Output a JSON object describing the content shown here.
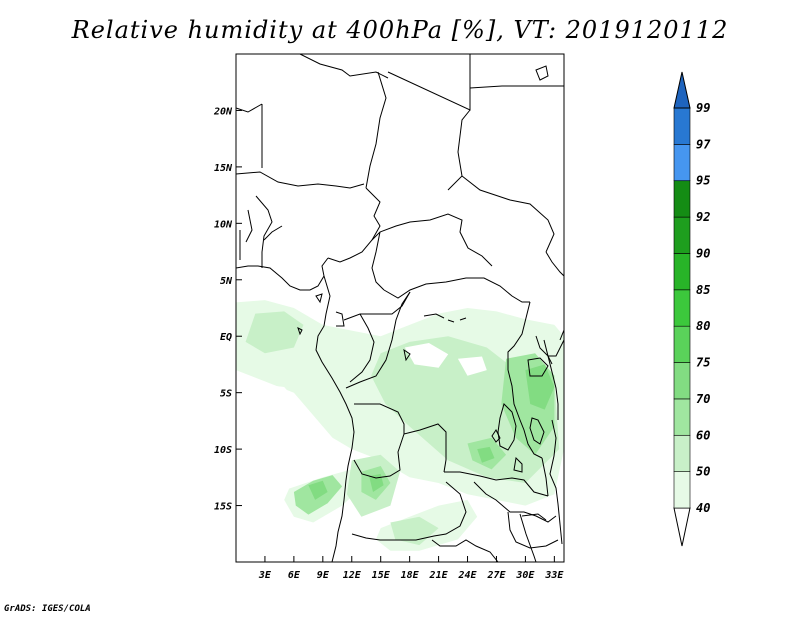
{
  "title": "Relative humidity at 400hPa [%], VT: 2019120112",
  "credit": "GrADS: IGES/COLA",
  "map": {
    "lon_range": [
      0,
      34
    ],
    "lat_range": [
      -20,
      25
    ],
    "lat_ticks": [
      {
        "value": 20,
        "label": "20N"
      },
      {
        "value": 15,
        "label": "15N"
      },
      {
        "value": 10,
        "label": "10N"
      },
      {
        "value": 5,
        "label": "5N"
      },
      {
        "value": 0,
        "label": "EQ"
      },
      {
        "value": -5,
        "label": "5S"
      },
      {
        "value": -10,
        "label": "10S"
      },
      {
        "value": -15,
        "label": "15S"
      }
    ],
    "lon_ticks": [
      {
        "value": 3,
        "label": "3E"
      },
      {
        "value": 6,
        "label": "6E"
      },
      {
        "value": 9,
        "label": "9E"
      },
      {
        "value": 12,
        "label": "12E"
      },
      {
        "value": 15,
        "label": "15E"
      },
      {
        "value": 18,
        "label": "18E"
      },
      {
        "value": 21,
        "label": "21E"
      },
      {
        "value": 24,
        "label": "24E"
      },
      {
        "value": 27,
        "label": "27E"
      },
      {
        "value": 30,
        "label": "30E"
      },
      {
        "value": 33,
        "label": "33E"
      }
    ]
  },
  "colorbar": {
    "levels": [
      "40",
      "50",
      "60",
      "70",
      "75",
      "80",
      "85",
      "90",
      "92",
      "95",
      "97",
      "99"
    ],
    "colors": [
      "#ffffff",
      "#e6fae6",
      "#c8f0c8",
      "#a0e6a0",
      "#82dc82",
      "#5ad25a",
      "#3cc83c",
      "#28b428",
      "#1e9e1e",
      "#148c14",
      "#4696f0",
      "#2878d2",
      "#1e64be"
    ]
  },
  "humidity_regions": [
    {
      "level": 1,
      "coords": [
        [
          0,
          3
        ],
        [
          3,
          3.2
        ],
        [
          6,
          2.5
        ],
        [
          9,
          1
        ],
        [
          12,
          0.5
        ],
        [
          15,
          0
        ],
        [
          18,
          1
        ],
        [
          21,
          2
        ],
        [
          24,
          2.5
        ],
        [
          27,
          2.2
        ],
        [
          30,
          1.5
        ],
        [
          33,
          1
        ],
        [
          34,
          0
        ],
        [
          34,
          -10
        ],
        [
          33,
          -14
        ],
        [
          30,
          -15
        ],
        [
          27,
          -14.5
        ],
        [
          24,
          -14
        ],
        [
          21,
          -13
        ],
        [
          18,
          -12.5
        ],
        [
          15,
          -11
        ],
        [
          12,
          -10
        ],
        [
          10,
          -9
        ],
        [
          8,
          -7
        ],
        [
          6,
          -5
        ],
        [
          3,
          -4
        ],
        [
          0,
          -3
        ]
      ]
    },
    {
      "level": 1,
      "coords": [
        [
          5.5,
          -13.5
        ],
        [
          9,
          -12.5
        ],
        [
          12,
          -11.8
        ],
        [
          13.5,
          -13
        ],
        [
          11,
          -15
        ],
        [
          8,
          -16.5
        ],
        [
          6,
          -16
        ],
        [
          5,
          -14.5
        ]
      ]
    },
    {
      "level": 1,
      "coords": [
        [
          15,
          -17
        ],
        [
          18,
          -16
        ],
        [
          21,
          -15
        ],
        [
          24,
          -14.5
        ],
        [
          25,
          -16
        ],
        [
          23,
          -18
        ],
        [
          19,
          -19
        ],
        [
          16,
          -19
        ],
        [
          14.5,
          -18
        ]
      ]
    },
    {
      "level": 2,
      "coords": [
        [
          2,
          2
        ],
        [
          5,
          2.2
        ],
        [
          7,
          1
        ],
        [
          6,
          -1
        ],
        [
          3,
          -1.5
        ],
        [
          1,
          -0.5
        ]
      ]
    },
    {
      "level": 2,
      "coords": [
        [
          15,
          -1.5
        ],
        [
          18,
          -0.5
        ],
        [
          22,
          0
        ],
        [
          26,
          -1
        ],
        [
          29,
          -3
        ],
        [
          33,
          -4
        ],
        [
          33.5,
          -10
        ],
        [
          30,
          -13
        ],
        [
          26,
          -12.5
        ],
        [
          22,
          -11
        ],
        [
          18,
          -8
        ],
        [
          15.5,
          -6
        ],
        [
          14,
          -3.5
        ]
      ]
    },
    {
      "level": 2,
      "coords": [
        [
          12,
          -11
        ],
        [
          15,
          -10.5
        ],
        [
          17,
          -12
        ],
        [
          16,
          -15
        ],
        [
          13,
          -16
        ],
        [
          11.5,
          -14
        ]
      ]
    },
    {
      "level": 2,
      "coords": [
        [
          16,
          -16.5
        ],
        [
          19,
          -16
        ],
        [
          21,
          -17
        ],
        [
          19,
          -18.5
        ],
        [
          16.5,
          -18
        ]
      ]
    },
    {
      "level": 3,
      "coords": [
        [
          6,
          -13.8
        ],
        [
          8,
          -12.8
        ],
        [
          10,
          -12.3
        ],
        [
          11,
          -13.3
        ],
        [
          9.5,
          -14.8
        ],
        [
          7.5,
          -15.8
        ],
        [
          6.2,
          -15
        ]
      ]
    },
    {
      "level": 3,
      "coords": [
        [
          28,
          -2
        ],
        [
          31,
          -1.5
        ],
        [
          33,
          -3.5
        ],
        [
          33,
          -8
        ],
        [
          31,
          -10.5
        ],
        [
          29,
          -9
        ],
        [
          27.5,
          -6
        ]
      ]
    },
    {
      "level": 3,
      "coords": [
        [
          13,
          -12
        ],
        [
          15,
          -11.5
        ],
        [
          16,
          -13
        ],
        [
          14.5,
          -14.5
        ],
        [
          13,
          -13.8
        ]
      ]
    },
    {
      "level": 3,
      "coords": [
        [
          24,
          -9.5
        ],
        [
          26.5,
          -9
        ],
        [
          28,
          -10.5
        ],
        [
          26.5,
          -11.8
        ],
        [
          24.5,
          -11
        ]
      ]
    },
    {
      "level": 4,
      "coords": [
        [
          30,
          -3
        ],
        [
          32,
          -2.5
        ],
        [
          33,
          -4.5
        ],
        [
          32,
          -6.5
        ],
        [
          30.5,
          -6
        ]
      ]
    },
    {
      "level": 4,
      "coords": [
        [
          13.8,
          -12.4
        ],
        [
          15,
          -12.2
        ],
        [
          15.3,
          -13.2
        ],
        [
          14.2,
          -13.8
        ]
      ]
    },
    {
      "level": 4,
      "coords": [
        [
          7.5,
          -13.2
        ],
        [
          9,
          -12.8
        ],
        [
          9.5,
          -13.8
        ],
        [
          8.2,
          -14.5
        ]
      ]
    },
    {
      "level": 4,
      "coords": [
        [
          25,
          -10
        ],
        [
          26.3,
          -9.8
        ],
        [
          26.8,
          -10.8
        ],
        [
          25.5,
          -11.2
        ]
      ]
    }
  ],
  "white_holes": [
    {
      "coords": [
        [
          17.5,
          -1
        ],
        [
          20,
          -0.6
        ],
        [
          22,
          -1.6
        ],
        [
          21,
          -2.8
        ],
        [
          18.5,
          -2.5
        ]
      ]
    },
    {
      "coords": [
        [
          23,
          -2
        ],
        [
          25.5,
          -1.8
        ],
        [
          26,
          -3
        ],
        [
          24,
          -3.5
        ]
      ]
    },
    {
      "coords": [
        [
          2,
          -4.2
        ],
        [
          5,
          -4.5
        ],
        [
          7,
          -6.5
        ],
        [
          8.5,
          -9
        ],
        [
          7,
          -10
        ],
        [
          4,
          -9
        ],
        [
          1,
          -7
        ],
        [
          0,
          -5
        ]
      ]
    }
  ]
}
